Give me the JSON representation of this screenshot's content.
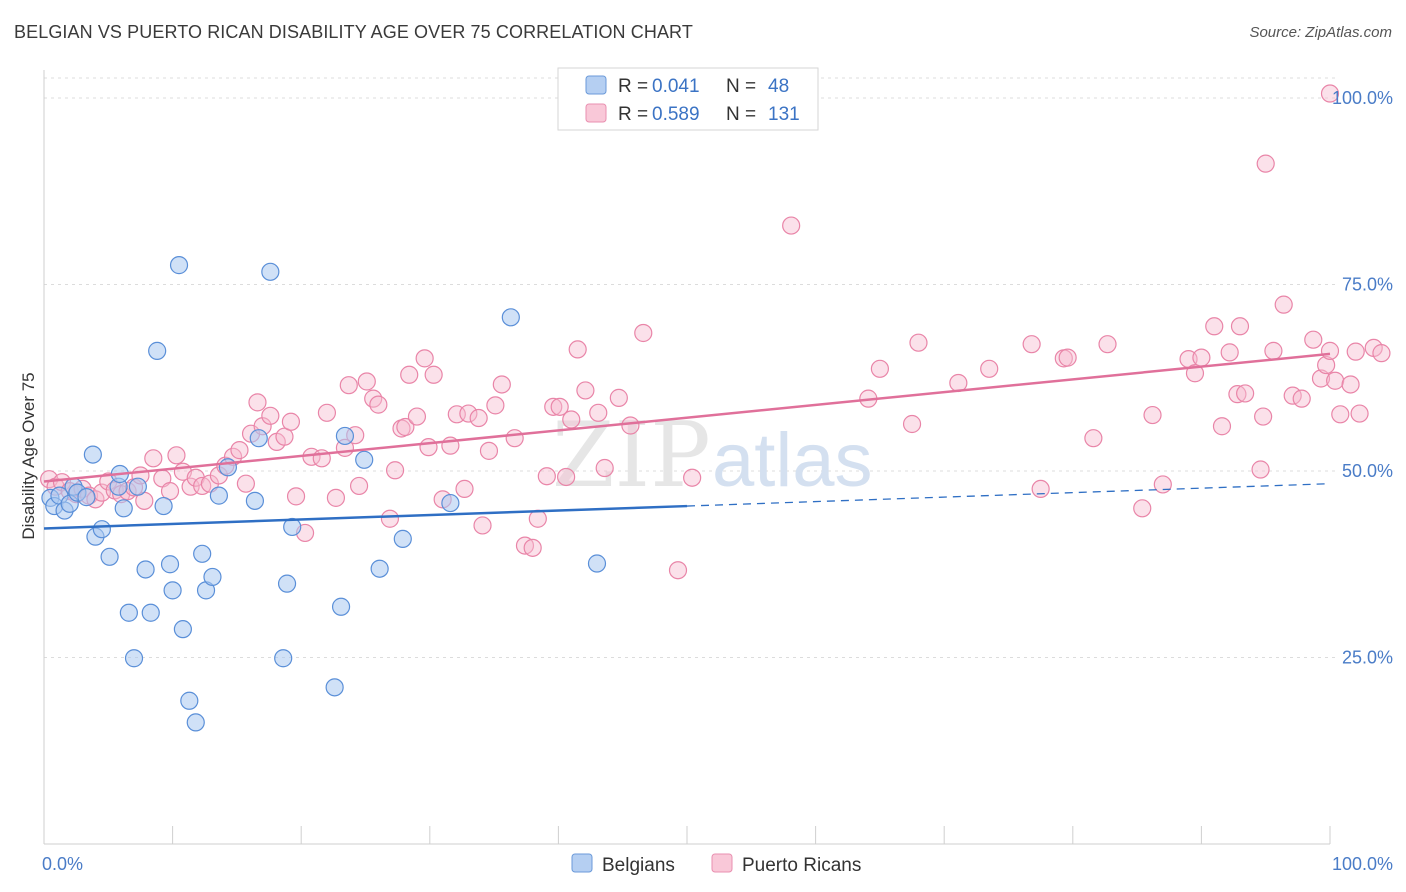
{
  "header": {
    "title": "BELGIAN VS PUERTO RICAN DISABILITY AGE OVER 75 CORRELATION CHART",
    "source": "Source: ZipAtlas.com"
  },
  "watermark": {
    "zip": "ZIP",
    "atlas": "atlas"
  },
  "legend": {
    "rows": [
      {
        "r_label": "R =",
        "r_value": "0.041",
        "n_label": "N =",
        "n_value": "48"
      },
      {
        "r_label": "R =",
        "r_value": "0.589",
        "n_label": "N =",
        "n_value": "131"
      }
    ]
  },
  "colors": {
    "belgians_fill": "#a9c8f0",
    "belgians_stroke": "#5a8fd8",
    "belgians_line": "#2f6fc4",
    "pr_fill": "#f7bcd0",
    "pr_stroke": "#e985a8",
    "pr_line": "#e0709a"
  },
  "chart_data": {
    "type": "scatter",
    "title": "BELGIAN VS PUERTO RICAN DISABILITY AGE OVER 75 CORRELATION CHART",
    "xlabel": "",
    "ylabel": "Disability Age Over 75",
    "xlim": [
      0,
      100
    ],
    "ylim": [
      0,
      105
    ],
    "x_tick_labels": [
      "0.0%",
      "100.0%"
    ],
    "y_ticks": [
      25,
      50,
      75,
      100
    ],
    "y_tick_labels": [
      "25.0%",
      "50.0%",
      "75.0%",
      "100.0%"
    ],
    "grid": true,
    "legend_position": "bottom",
    "series": [
      {
        "name": "Belgians",
        "trend": {
          "x0": 0,
          "y0": 42.3,
          "x1": 50,
          "y1": 45.3,
          "dashed_to_x": 100,
          "dashed_to_y": 48.3
        },
        "points": [
          [
            0.5,
            46.4
          ],
          [
            0.8,
            45.3
          ],
          [
            1.2,
            46.7
          ],
          [
            1.6,
            44.7
          ],
          [
            2.0,
            45.6
          ],
          [
            2.3,
            47.9
          ],
          [
            2.6,
            47.1
          ],
          [
            3.3,
            46.5
          ],
          [
            3.8,
            52.2
          ],
          [
            4.0,
            41.2
          ],
          [
            4.5,
            42.2
          ],
          [
            5.1,
            38.5
          ],
          [
            5.8,
            47.9
          ],
          [
            5.9,
            49.6
          ],
          [
            6.2,
            45.0
          ],
          [
            6.6,
            31.0
          ],
          [
            7.0,
            24.9
          ],
          [
            7.3,
            47.9
          ],
          [
            7.9,
            36.8
          ],
          [
            8.3,
            31.0
          ],
          [
            8.8,
            66.1
          ],
          [
            9.3,
            45.3
          ],
          [
            9.8,
            37.5
          ],
          [
            10.0,
            34.0
          ],
          [
            10.5,
            77.6
          ],
          [
            10.8,
            28.8
          ],
          [
            11.3,
            19.2
          ],
          [
            11.8,
            16.3
          ],
          [
            12.3,
            38.9
          ],
          [
            12.6,
            34.0
          ],
          [
            13.1,
            35.8
          ],
          [
            13.6,
            46.7
          ],
          [
            14.3,
            50.5
          ],
          [
            16.4,
            46.0
          ],
          [
            16.7,
            54.4
          ],
          [
            17.6,
            76.7
          ],
          [
            18.6,
            24.9
          ],
          [
            18.9,
            34.9
          ],
          [
            19.3,
            42.5
          ],
          [
            22.6,
            21.0
          ],
          [
            23.1,
            31.8
          ],
          [
            23.4,
            54.7
          ],
          [
            24.9,
            51.5
          ],
          [
            26.1,
            36.9
          ],
          [
            27.9,
            40.9
          ],
          [
            31.6,
            45.7
          ],
          [
            36.3,
            70.6
          ],
          [
            43.0,
            37.6
          ]
        ]
      },
      {
        "name": "Puerto Ricans",
        "trend": {
          "x0": 0,
          "y0": 48.6,
          "x1": 100,
          "y1": 65.7
        },
        "points": [
          [
            0.4,
            48.9
          ],
          [
            0.9,
            47.9
          ],
          [
            1.4,
            48.5
          ],
          [
            2.0,
            47.3
          ],
          [
            2.5,
            46.9
          ],
          [
            3.0,
            47.6
          ],
          [
            3.5,
            46.7
          ],
          [
            4.0,
            46.2
          ],
          [
            4.5,
            47.1
          ],
          [
            5.0,
            48.6
          ],
          [
            5.5,
            47.4
          ],
          [
            6.0,
            46.9
          ],
          [
            6.5,
            47.3
          ],
          [
            7.0,
            47.8
          ],
          [
            7.5,
            49.4
          ],
          [
            7.8,
            46.0
          ],
          [
            8.5,
            51.7
          ],
          [
            9.2,
            49.0
          ],
          [
            9.8,
            47.3
          ],
          [
            10.3,
            52.1
          ],
          [
            10.8,
            49.9
          ],
          [
            11.4,
            47.9
          ],
          [
            11.8,
            49.1
          ],
          [
            12.3,
            48.0
          ],
          [
            12.9,
            48.3
          ],
          [
            13.6,
            49.4
          ],
          [
            14.1,
            50.7
          ],
          [
            14.7,
            51.9
          ],
          [
            15.2,
            52.8
          ],
          [
            15.7,
            48.3
          ],
          [
            16.1,
            55.0
          ],
          [
            16.6,
            59.2
          ],
          [
            17.0,
            56.0
          ],
          [
            17.6,
            57.4
          ],
          [
            18.1,
            53.9
          ],
          [
            18.7,
            54.6
          ],
          [
            19.2,
            56.6
          ],
          [
            19.6,
            46.6
          ],
          [
            20.3,
            41.7
          ],
          [
            20.8,
            51.9
          ],
          [
            21.6,
            51.7
          ],
          [
            22.0,
            57.8
          ],
          [
            22.7,
            46.4
          ],
          [
            23.4,
            53.1
          ],
          [
            23.7,
            61.5
          ],
          [
            24.2,
            54.8
          ],
          [
            24.5,
            48.0
          ],
          [
            25.1,
            62.0
          ],
          [
            25.6,
            59.7
          ],
          [
            26.0,
            58.9
          ],
          [
            26.9,
            43.6
          ],
          [
            27.3,
            50.1
          ],
          [
            27.8,
            55.7
          ],
          [
            28.1,
            55.9
          ],
          [
            28.4,
            62.9
          ],
          [
            29.0,
            57.3
          ],
          [
            29.6,
            65.1
          ],
          [
            29.9,
            53.2
          ],
          [
            30.3,
            62.9
          ],
          [
            31.0,
            46.2
          ],
          [
            31.6,
            53.4
          ],
          [
            32.1,
            57.6
          ],
          [
            32.7,
            47.6
          ],
          [
            33.0,
            57.7
          ],
          [
            33.8,
            57.1
          ],
          [
            34.1,
            42.7
          ],
          [
            34.6,
            52.7
          ],
          [
            35.1,
            58.8
          ],
          [
            35.6,
            61.6
          ],
          [
            36.6,
            54.4
          ],
          [
            37.4,
            40.0
          ],
          [
            38.0,
            39.7
          ],
          [
            38.4,
            43.6
          ],
          [
            39.1,
            49.3
          ],
          [
            39.6,
            58.6
          ],
          [
            40.1,
            58.6
          ],
          [
            40.6,
            49.2
          ],
          [
            41.0,
            56.9
          ],
          [
            41.5,
            66.3
          ],
          [
            42.1,
            60.8
          ],
          [
            43.1,
            57.8
          ],
          [
            43.6,
            50.4
          ],
          [
            44.7,
            59.8
          ],
          [
            45.6,
            56.1
          ],
          [
            46.6,
            68.5
          ],
          [
            49.3,
            36.7
          ],
          [
            50.4,
            49.1
          ],
          [
            58.1,
            82.9
          ],
          [
            64.1,
            59.7
          ],
          [
            65.0,
            63.7
          ],
          [
            67.5,
            56.3
          ],
          [
            68.0,
            67.2
          ],
          [
            71.1,
            61.8
          ],
          [
            73.5,
            63.7
          ],
          [
            76.8,
            67.0
          ],
          [
            77.5,
            47.6
          ],
          [
            79.3,
            65.1
          ],
          [
            79.6,
            65.2
          ],
          [
            81.6,
            54.4
          ],
          [
            82.7,
            67.0
          ],
          [
            85.4,
            45.0
          ],
          [
            86.2,
            57.5
          ],
          [
            87.0,
            48.2
          ],
          [
            89.0,
            65.0
          ],
          [
            89.5,
            63.1
          ],
          [
            90.0,
            65.2
          ],
          [
            91.0,
            69.4
          ],
          [
            91.6,
            56.0
          ],
          [
            92.2,
            65.9
          ],
          [
            92.8,
            60.3
          ],
          [
            93.0,
            69.4
          ],
          [
            93.4,
            60.4
          ],
          [
            94.6,
            50.2
          ],
          [
            94.8,
            57.3
          ],
          [
            95.0,
            91.2
          ],
          [
            95.6,
            66.1
          ],
          [
            96.4,
            72.3
          ],
          [
            97.1,
            60.1
          ],
          [
            97.8,
            59.7
          ],
          [
            98.7,
            67.6
          ],
          [
            99.3,
            62.4
          ],
          [
            99.7,
            64.2
          ],
          [
            100.0,
            66.1
          ],
          [
            100.4,
            62.1
          ],
          [
            100.8,
            57.6
          ],
          [
            101.6,
            61.6
          ],
          [
            102.0,
            66.0
          ],
          [
            102.3,
            57.7
          ],
          [
            103.4,
            66.5
          ],
          [
            104.0,
            65.8
          ],
          [
            100.0,
            100.6
          ]
        ]
      }
    ]
  },
  "bottom_legend": {
    "items": [
      "Belgians",
      "Puerto Ricans"
    ]
  }
}
